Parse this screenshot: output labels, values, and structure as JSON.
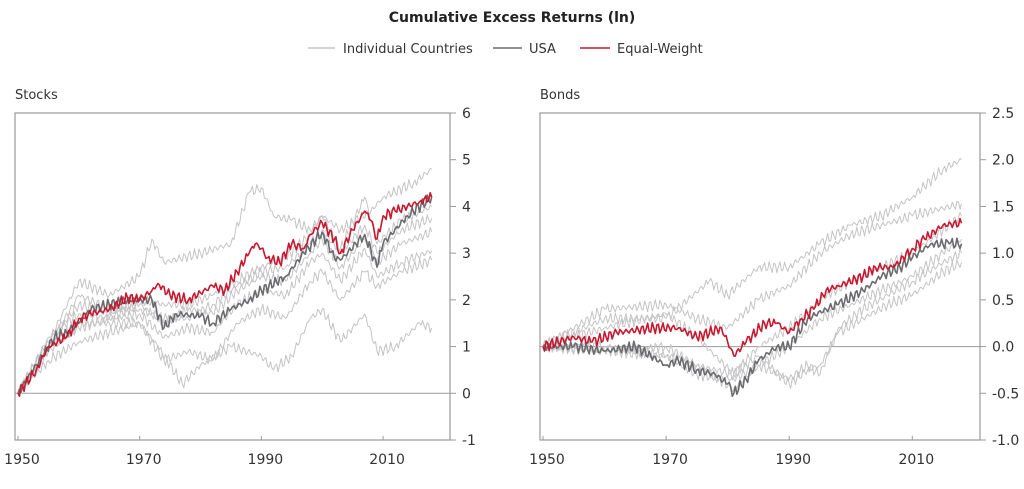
{
  "colors": {
    "individual": "#c4c4c6",
    "usa": "#6b6b6e",
    "equal_weight": "#c8182f",
    "axis": "#9a9a9a"
  },
  "chart_data": {
    "title": "Cumulative Excess Returns (ln)",
    "legend": {
      "placement": "top-center",
      "entries": [
        "Individual Countries",
        "USA",
        "Equal-Weight"
      ]
    },
    "panels": [
      {
        "type": "line",
        "title": "Stocks",
        "xlim": [
          1950,
          2021
        ],
        "ylim": [
          -1,
          6
        ],
        "x_ticks": [
          1950,
          1970,
          1990,
          2010
        ],
        "y_ticks": [
          "6",
          "5",
          "4",
          "3",
          "2",
          "1",
          "0",
          "-1"
        ],
        "y_tick_values": [
          6,
          5,
          4,
          3,
          2,
          1,
          0,
          -1
        ],
        "y_axis_side": "right",
        "zero_line": true,
        "series": [
          {
            "name": "Equal-Weight",
            "x": [
              1950,
              1953,
              1955,
              1958,
              1960,
              1962,
              1965,
              1968,
              1970,
              1972,
              1973,
              1975,
              1978,
              1982,
              1984,
              1986,
              1988,
              1989,
              1990,
              1991,
              1993,
              1995,
              1997,
              1998,
              2000,
              2002,
              2003,
              2005,
              2007,
              2008,
              2009,
              2010,
              2012,
              2014,
              2016,
              2018
            ],
            "y": [
              0,
              0.5,
              1.0,
              1.2,
              1.6,
              1.7,
              1.8,
              2.05,
              2.0,
              2.2,
              2.35,
              2.1,
              2.0,
              2.3,
              2.2,
              2.6,
              3.0,
              3.2,
              3.1,
              2.9,
              2.8,
              3.2,
              3.1,
              3.4,
              3.65,
              3.3,
              3.0,
              3.5,
              3.9,
              3.7,
              3.3,
              3.8,
              3.9,
              4.0,
              4.1,
              4.2
            ]
          },
          {
            "name": "USA",
            "x": [
              1950,
              1954,
              1956,
              1958,
              1960,
              1962,
              1965,
              1968,
              1972,
              1974,
              1976,
              1980,
              1982,
              1985,
              1988,
              1990,
              1994,
              1997,
              2000,
              2002,
              2003,
              2007,
              2009,
              2010,
              2014,
              2018
            ],
            "y": [
              0,
              0.8,
              1.2,
              1.3,
              1.5,
              1.8,
              1.9,
              2.0,
              2.0,
              1.4,
              1.7,
              1.65,
              1.5,
              1.8,
              2.0,
              2.2,
              2.5,
              3.0,
              3.45,
              2.9,
              2.85,
              3.4,
              2.7,
              3.2,
              3.8,
              4.2
            ]
          },
          {
            "name": "Individual Countries",
            "x": [
              1950,
              1955,
              1960,
              1965,
              1970,
              1972,
              1974,
              1980,
              1985,
              1988,
              1990,
              1992,
              1995,
              1998,
              2000,
              2003,
              2008,
              2010,
              2015,
              2018
            ],
            "y": [
              0,
              1.1,
              2.4,
              2.1,
              2.5,
              3.3,
              2.8,
              3.0,
              3.2,
              4.3,
              4.4,
              3.8,
              3.7,
              3.5,
              3.8,
              3.5,
              3.9,
              4.2,
              4.5,
              4.8
            ]
          },
          {
            "name": "Individual Countries",
            "x": [
              1950,
              1955,
              1960,
              1965,
              1970,
              1973,
              1977,
              1980,
              1985,
              1990,
              1992,
              1995,
              1998,
              2000,
              2003,
              2007,
              2009,
              2012,
              2016,
              2018
            ],
            "y": [
              0,
              1.0,
              1.5,
              1.5,
              1.5,
              1.0,
              0.2,
              0.6,
              1.0,
              0.8,
              0.5,
              0.8,
              1.6,
              1.8,
              1.1,
              1.7,
              0.9,
              1.0,
              1.5,
              1.4
            ]
          },
          {
            "name": "Individual Countries",
            "x": [
              1950,
              1955,
              1960,
              1965,
              1970,
              1974,
              1978,
              1982,
              1986,
              1990,
              1994,
              1998,
              2000,
              2003,
              2007,
              2009,
              2013,
              2018
            ],
            "y": [
              0,
              0.7,
              1.1,
              1.3,
              1.5,
              0.7,
              0.9,
              0.7,
              1.5,
              1.8,
              1.6,
              2.4,
              2.6,
              2.0,
              2.6,
              2.3,
              2.6,
              2.85
            ]
          },
          {
            "name": "Individual Countries",
            "x": [
              1950,
              1955,
              1960,
              1965,
              1970,
              1974,
              1978,
              1982,
              1986,
              1990,
              1994,
              1998,
              2000,
              2003,
              2007,
              2009,
              2013,
              2018
            ],
            "y": [
              0,
              0.9,
              1.4,
              1.6,
              1.7,
              1.2,
              1.4,
              1.3,
              1.9,
              2.2,
              2.1,
              2.8,
              3.0,
              2.4,
              3.1,
              2.5,
              2.8,
              3.05
            ]
          },
          {
            "name": "Individual Countries",
            "x": [
              1950,
              1955,
              1960,
              1965,
              1970,
              1974,
              1978,
              1982,
              1986,
              1990,
              1994,
              1998,
              2000,
              2003,
              2007,
              2009,
              2013,
              2018
            ],
            "y": [
              0,
              1.2,
              1.7,
              1.6,
              1.9,
              1.5,
              1.8,
              1.7,
              2.2,
              2.5,
              2.4,
              3.0,
              3.3,
              2.7,
              3.3,
              2.8,
              3.2,
              3.45
            ]
          },
          {
            "name": "Individual Countries",
            "x": [
              1950,
              1955,
              1960,
              1965,
              1970,
              1974,
              1978,
              1982,
              1986,
              1990,
              1994,
              1998,
              2000,
              2003,
              2007,
              2009,
              2013,
              2018
            ],
            "y": [
              0,
              1.0,
              2.1,
              1.8,
              1.8,
              1.6,
              1.6,
              1.9,
              2.3,
              2.6,
              2.7,
              3.2,
              3.5,
              3.0,
              3.6,
              3.0,
              3.5,
              3.75
            ]
          },
          {
            "name": "Individual Countries",
            "x": [
              1950,
              1955,
              1960,
              1965,
              1970,
              1974,
              1978,
              1982,
              1986,
              1990,
              1994,
              1998,
              2000,
              2003,
              2007,
              2009,
              2013,
              2018
            ],
            "y": [
              0,
              1.1,
              1.9,
              1.7,
              2.0,
              1.9,
              1.9,
              2.1,
              2.4,
              2.7,
              2.9,
              3.4,
              3.8,
              3.1,
              4.2,
              3.2,
              3.7,
              4.0
            ]
          }
        ]
      },
      {
        "type": "line",
        "title": "Bonds",
        "xlim": [
          1950,
          2021
        ],
        "ylim": [
          -1.0,
          2.5
        ],
        "x_ticks": [
          1950,
          1970,
          1990,
          2010
        ],
        "y_ticks": [
          "2.5",
          "2.0",
          "1.5",
          "1.0",
          "0.5",
          "0.0",
          "-0.5",
          "-1.0"
        ],
        "y_tick_values": [
          2.5,
          2.0,
          1.5,
          1.0,
          0.5,
          0.0,
          -0.5,
          -1.0
        ],
        "y_axis_side": "right",
        "zero_line": true,
        "series": [
          {
            "name": "Equal-Weight",
            "x": [
              1950,
              1955,
              1958,
              1962,
              1968,
              1972,
              1975,
              1979,
              1981,
              1983,
              1986,
              1988,
              1990,
              1992,
              1994,
              1996,
              1998,
              2002,
              2004,
              2007,
              2010,
              2012,
              2015,
              2018
            ],
            "y": [
              0,
              0.1,
              0.05,
              0.15,
              0.2,
              0.2,
              0.1,
              0.2,
              -0.1,
              0.05,
              0.25,
              0.25,
              0.15,
              0.3,
              0.4,
              0.6,
              0.65,
              0.75,
              0.85,
              0.85,
              1.05,
              1.15,
              1.3,
              1.32
            ]
          },
          {
            "name": "USA",
            "x": [
              1950,
              1955,
              1960,
              1965,
              1970,
              1972,
              1975,
              1978,
              1980,
              1981,
              1983,
              1985,
              1988,
              1990,
              1993,
              1996,
              1998,
              2002,
              2005,
              2008,
              2010,
              2013,
              2016,
              2018
            ],
            "y": [
              0,
              0,
              -0.05,
              0,
              -0.2,
              -0.15,
              -0.25,
              -0.3,
              -0.4,
              -0.5,
              -0.35,
              -0.15,
              0,
              0,
              0.3,
              0.4,
              0.45,
              0.6,
              0.75,
              0.85,
              0.95,
              1.1,
              1.1,
              1.1
            ]
          },
          {
            "name": "Individual Countries",
            "x": [
              1950,
              1960,
              1970,
              1977,
              1980,
              1985,
              1990,
              1995,
              2000,
              2005,
              2010,
              2015,
              2018
            ],
            "y": [
              0,
              0.3,
              0.3,
              0.7,
              0.55,
              0.85,
              0.85,
              1.1,
              1.3,
              1.4,
              1.6,
              1.9,
              2.0
            ]
          },
          {
            "name": "Individual Countries",
            "x": [
              1950,
              1960,
              1970,
              1975,
              1980,
              1985,
              1990,
              1995,
              2000,
              2005,
              2010,
              2018
            ],
            "y": [
              0,
              0.4,
              0.45,
              0.3,
              0.2,
              0.5,
              0.65,
              1.0,
              1.2,
              1.3,
              1.4,
              1.53
            ]
          },
          {
            "name": "Individual Countries",
            "x": [
              1950,
              1960,
              1970,
              1975,
              1981,
              1985,
              1990,
              1995,
              2000,
              2005,
              2010,
              2015,
              2018
            ],
            "y": [
              0,
              0.2,
              0.35,
              0.1,
              -0.3,
              0.0,
              0.2,
              0.5,
              0.7,
              0.85,
              1.0,
              1.25,
              1.4
            ]
          },
          {
            "name": "Individual Countries",
            "x": [
              1950,
              1960,
              1970,
              1975,
              1981,
              1985,
              1990,
              1995,
              2000,
              2005,
              2010,
              2015,
              2018
            ],
            "y": [
              0,
              -0.05,
              0.0,
              -0.2,
              -0.45,
              -0.2,
              0.0,
              0.3,
              0.45,
              0.6,
              0.75,
              1.0,
              1.15
            ]
          },
          {
            "name": "Individual Countries",
            "x": [
              1950,
              1960,
              1970,
              1975,
              1981,
              1985,
              1990,
              1993,
              1995,
              1998,
              2002,
              2006,
              2010,
              2015,
              2018
            ],
            "y": [
              0,
              0.0,
              -0.1,
              -0.3,
              -0.35,
              -0.2,
              -0.35,
              -0.2,
              -0.3,
              0.2,
              0.4,
              0.55,
              0.7,
              0.9,
              1.0
            ]
          },
          {
            "name": "Individual Countries",
            "x": [
              1950,
              1960,
              1970,
              1975,
              1981,
              1985,
              1990,
              1993,
              1995,
              1998,
              2002,
              2006,
              2010,
              2015,
              2018
            ],
            "y": [
              0,
              -0.05,
              -0.1,
              -0.2,
              -0.3,
              -0.1,
              -0.4,
              -0.25,
              -0.2,
              0.15,
              0.3,
              0.45,
              0.55,
              0.8,
              0.9
            ]
          }
        ]
      }
    ]
  }
}
